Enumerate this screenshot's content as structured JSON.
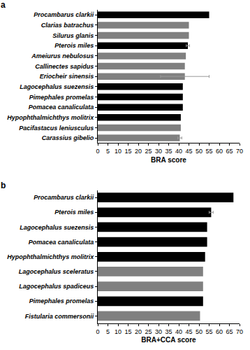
{
  "chart_data": [
    {
      "type": "bar",
      "title": "a",
      "orientation": "horizontal",
      "grid": false,
      "x_label": "BRA score",
      "categories": [
        "Procambarus clarkii",
        "Clarias batrachus",
        "Silurus glanis",
        "Pterois miles",
        "Ameiurus nebulosus",
        "Callinectes sapidus",
        "Eriocheir sinensis",
        "Lagocephalus suezensis",
        "Pimephales promelas",
        "Pomacea canaliculata",
        "Hypophthalmichthys molitrix",
        "Pacifastacus leniusculus",
        "Carassius gibelio"
      ],
      "values": [
        55,
        45,
        45,
        44.5,
        43.5,
        43,
        43,
        42,
        42,
        42,
        41,
        41,
        40.5
      ],
      "error": [
        null,
        null,
        null,
        0.8,
        null,
        null,
        12,
        null,
        null,
        null,
        null,
        null,
        1
      ],
      "colors": [
        "#000000",
        "#808080",
        "#808080",
        "#000000",
        "#808080",
        "#808080",
        "#808080",
        "#000000",
        "#000000",
        "#000000",
        "#000000",
        "#808080",
        "#808080"
      ],
      "xlim": [
        0,
        70
      ],
      "xticks": [
        0,
        5,
        10,
        15,
        20,
        25,
        30,
        35,
        40,
        45,
        50,
        55,
        60,
        65,
        70
      ]
    },
    {
      "type": "bar",
      "title": "b",
      "orientation": "horizontal",
      "grid": false,
      "x_label": "BRA+CCA score",
      "categories": [
        "Procambarus clarkii",
        "Pterois miles",
        "Lagocephalus suezensis",
        "Pomacea canaliculata",
        "Hypophthalmichthys molitrix",
        "Lagocephalus sceleratus",
        "Lagocephalus spadiceus",
        "Pimephales promelas",
        "Fistularia commersonii"
      ],
      "values": [
        67,
        56,
        54,
        54,
        53,
        52,
        52,
        52,
        50.5
      ],
      "error": [
        null,
        1,
        null,
        null,
        null,
        null,
        null,
        null,
        null
      ],
      "colors": [
        "#000000",
        "#000000",
        "#000000",
        "#000000",
        "#000000",
        "#808080",
        "#808080",
        "#000000",
        "#808080"
      ],
      "xlim": [
        0,
        70
      ],
      "xticks": [
        0,
        5,
        10,
        15,
        20,
        25,
        30,
        35,
        40,
        45,
        50,
        55,
        60,
        65,
        70
      ]
    }
  ]
}
